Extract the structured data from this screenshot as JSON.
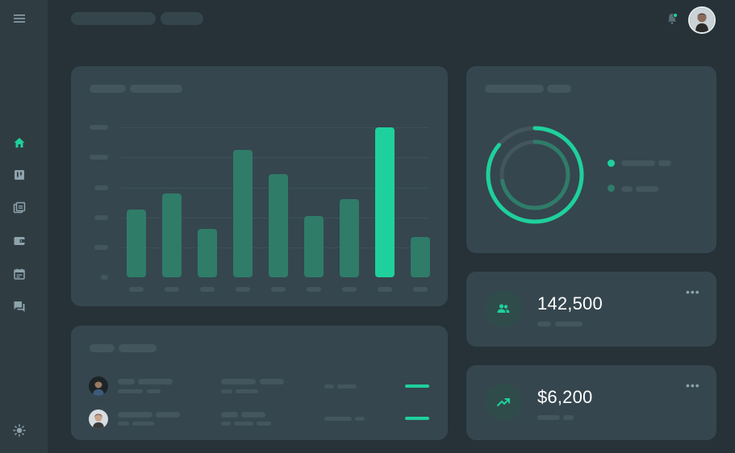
{
  "sidebar": {
    "items": [
      {
        "icon": "home-icon",
        "active": true
      },
      {
        "icon": "board-icon",
        "active": false
      },
      {
        "icon": "library-icon",
        "active": false
      },
      {
        "icon": "wallet-icon",
        "active": false
      },
      {
        "icon": "calendar-icon",
        "active": false
      },
      {
        "icon": "forum-icon",
        "active": false
      }
    ],
    "theme_icon": "sun-icon"
  },
  "colors": {
    "accent": "#1ed19c",
    "bar": "#2f7c69",
    "background": "#263238",
    "card": "#35464e"
  },
  "chart_data": {
    "type": "bar",
    "values": [
      0.45,
      0.56,
      0.32,
      0.85,
      0.69,
      0.41,
      0.52,
      1.0,
      0.27
    ],
    "highlight_index": 7
  },
  "donut": {
    "outer_fraction": 0.86,
    "inner_fraction": 0.72
  },
  "stats": [
    {
      "value": "142,500",
      "icon": "people-icon"
    },
    {
      "value": "$6,200",
      "icon": "trending-up-icon"
    }
  ]
}
